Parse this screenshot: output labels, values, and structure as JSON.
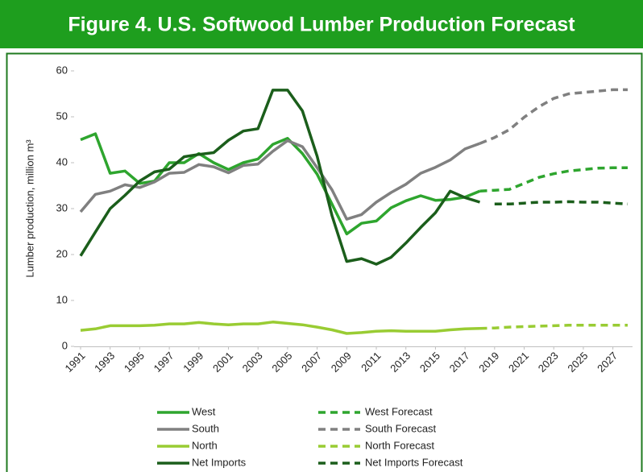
{
  "chart_data": {
    "type": "line",
    "title": "Figure 4. U.S. Softwood Lumber Production Forecast",
    "y_label": "Lumber production, million m³",
    "xlim": [
      1991,
      2028
    ],
    "xticks": [
      1991,
      1993,
      1995,
      1997,
      1999,
      2001,
      2003,
      2005,
      2007,
      2009,
      2011,
      2013,
      2015,
      2017,
      2019,
      2021,
      2023,
      2025,
      2027
    ],
    "ylim": [
      0,
      60
    ],
    "yticks": [
      0,
      10,
      20,
      30,
      40,
      50,
      60
    ],
    "grid": false,
    "series": [
      {
        "name": "West",
        "color": "#2ea52e",
        "dashed": false,
        "x": [
          1991,
          1992,
          1993,
          1994,
          1995,
          1996,
          1997,
          1998,
          1999,
          2000,
          2001,
          2002,
          2003,
          2004,
          2005,
          2006,
          2007,
          2008,
          2009,
          2010,
          2011,
          2012,
          2013,
          2014,
          2015,
          2016,
          2017,
          2018
        ],
        "values": [
          45,
          46.3,
          37.7,
          38.2,
          35.5,
          36,
          40,
          40,
          42,
          40,
          38.5,
          40,
          40.8,
          44,
          45.3,
          42,
          37.5,
          31,
          24.5,
          26.8,
          27.3,
          30.2,
          31.7,
          32.8,
          31.8,
          32,
          32.5,
          33.8
        ]
      },
      {
        "name": "South",
        "color": "#808080",
        "dashed": false,
        "x": [
          1991,
          1992,
          1993,
          1994,
          1995,
          1996,
          1997,
          1998,
          1999,
          2000,
          2001,
          2002,
          2003,
          2004,
          2005,
          2006,
          2007,
          2008,
          2009,
          2010,
          2011,
          2012,
          2013,
          2014,
          2015,
          2016,
          2017,
          2018
        ],
        "values": [
          29.3,
          33.1,
          33.8,
          35.2,
          34.6,
          35.8,
          37.7,
          37.9,
          39.6,
          39.1,
          37.8,
          39.4,
          39.7,
          42.5,
          44.8,
          43.5,
          38.9,
          34.1,
          27.7,
          28.7,
          31.4,
          33.5,
          35.3,
          37.7,
          39,
          40.6,
          43,
          44.2
        ]
      },
      {
        "name": "North",
        "color": "#99cc33",
        "dashed": false,
        "x": [
          1991,
          1992,
          1993,
          1994,
          1995,
          1996,
          1997,
          1998,
          1999,
          2000,
          2001,
          2002,
          2003,
          2004,
          2005,
          2006,
          2007,
          2008,
          2009,
          2010,
          2011,
          2012,
          2013,
          2014,
          2015,
          2016,
          2017,
          2018
        ],
        "values": [
          3.5,
          3.8,
          4.5,
          4.5,
          4.5,
          4.6,
          4.9,
          4.9,
          5.2,
          4.9,
          4.7,
          4.9,
          4.9,
          5.3,
          5,
          4.7,
          4.2,
          3.6,
          2.8,
          3,
          3.3,
          3.4,
          3.3,
          3.3,
          3.3,
          3.6,
          3.8,
          3.9
        ]
      },
      {
        "name": "Net Imports",
        "color": "#1b5e1b",
        "dashed": false,
        "x": [
          1991,
          1992,
          1993,
          1994,
          1995,
          1996,
          1997,
          1998,
          1999,
          2000,
          2001,
          2002,
          2003,
          2004,
          2005,
          2006,
          2007,
          2008,
          2009,
          2010,
          2011,
          2012,
          2013,
          2014,
          2015,
          2016,
          2017,
          2018
        ],
        "values": [
          19.7,
          24.9,
          30,
          32.9,
          36,
          38,
          38.6,
          41.3,
          41.8,
          42.2,
          44.9,
          46.9,
          47.4,
          55.8,
          55.8,
          51.3,
          41.4,
          28.5,
          18.5,
          19.1,
          17.9,
          19.4,
          22.5,
          25.9,
          29.1,
          33.8,
          32.4,
          31.4
        ]
      },
      {
        "name": "West Forecast",
        "color": "#2ea52e",
        "dashed": true,
        "x": [
          2018,
          2019,
          2020,
          2021,
          2022,
          2023,
          2024,
          2025,
          2026,
          2027,
          2028
        ],
        "values": [
          33.8,
          34,
          34.2,
          35.5,
          36.8,
          37.6,
          38.2,
          38.5,
          38.8,
          38.9,
          38.9
        ]
      },
      {
        "name": "South Forecast",
        "color": "#808080",
        "dashed": true,
        "x": [
          2018,
          2019,
          2020,
          2021,
          2022,
          2023,
          2024,
          2025,
          2026,
          2027,
          2028
        ],
        "values": [
          44.2,
          45.5,
          47.2,
          49.9,
          52.2,
          54,
          55,
          55.3,
          55.6,
          55.9,
          55.9
        ]
      },
      {
        "name": "North Forecast",
        "color": "#99cc33",
        "dashed": true,
        "x": [
          2018,
          2019,
          2020,
          2021,
          2022,
          2023,
          2024,
          2025,
          2026,
          2027,
          2028
        ],
        "values": [
          3.9,
          4,
          4.2,
          4.3,
          4.4,
          4.5,
          4.6,
          4.6,
          4.6,
          4.6,
          4.6
        ]
      },
      {
        "name": "Net Imports Forecast",
        "color": "#1b5e1b",
        "dashed": true,
        "x": [
          2019,
          2020,
          2021,
          2022,
          2023,
          2024,
          2025,
          2026,
          2027,
          2028
        ],
        "values": [
          31,
          31,
          31.2,
          31.4,
          31.4,
          31.5,
          31.4,
          31.4,
          31.2,
          31
        ]
      }
    ]
  }
}
